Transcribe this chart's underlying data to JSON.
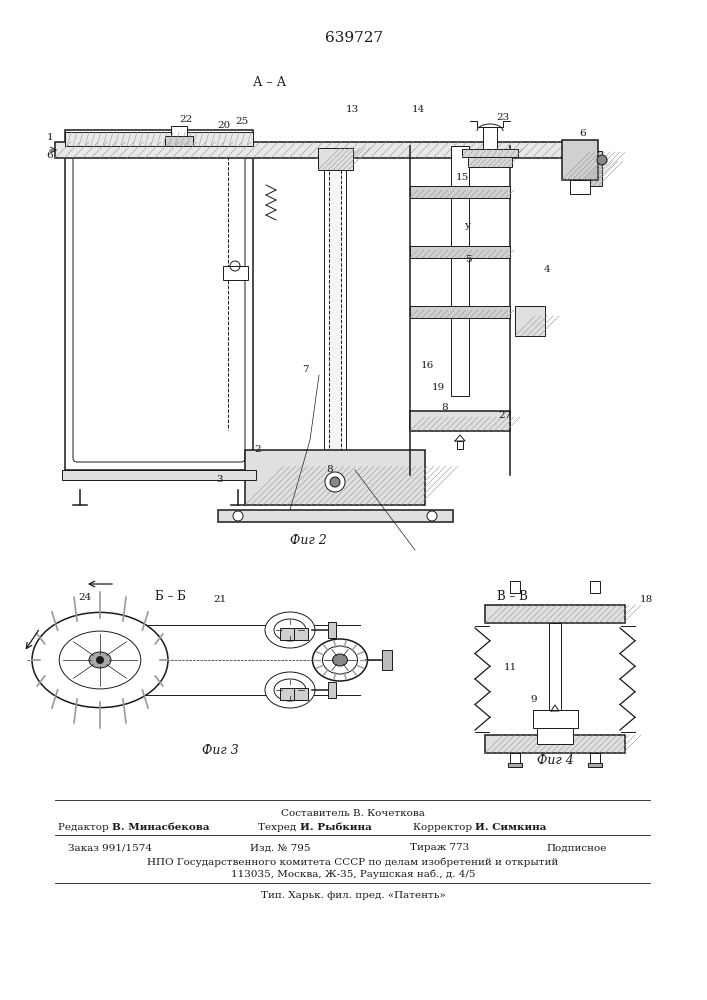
{
  "patent_number": "639727",
  "background_color": "#ffffff",
  "fig_width": 7.07,
  "fig_height": 10.0,
  "dpi": 100,
  "footer": {
    "line1_composer": "Составитель В. Кочеткова",
    "line2_left": "Редактор ",
    "line2_left_bold": "В. Минасбекова",
    "line2_mid": "Техред ",
    "line2_mid_bold": "И. Рыбкина",
    "line2_right": "Корректор ",
    "line2_right_bold": "И. Симкина",
    "line3_left": "Заказ 991/1574",
    "line3_midl": "Изд. № 795",
    "line3_midr": "Тираж 773",
    "line3_right": "Подписное",
    "line4": "НПО Государственного комитета СССР по делам изобретений и открытий",
    "line5": "113035, Москва, Ж-35, Раушская наб., д. 4/5",
    "line6": "Тип. Харьк. фил. пред. «Патенть»"
  }
}
